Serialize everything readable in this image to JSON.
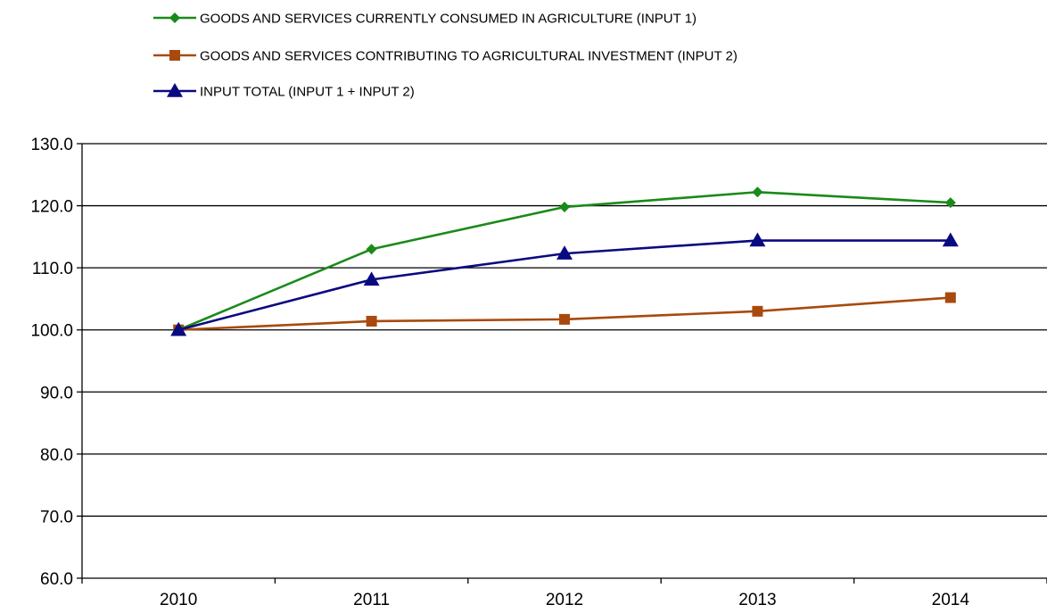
{
  "chart_data": {
    "type": "line",
    "title": "",
    "xlabel": "",
    "ylabel": "",
    "categories": [
      "2010",
      "2011",
      "2012",
      "2013",
      "2014"
    ],
    "ylim": [
      60,
      130
    ],
    "ytick_step": 10,
    "ytick_labels": [
      "60.0",
      "70.0",
      "80.0",
      "90.0",
      "100.0",
      "110.0",
      "120.0",
      "130.0"
    ],
    "grid": true,
    "legend_position": "top-left",
    "series": [
      {
        "name": "GOODS AND SERVICES CURRENTLY CONSUMED IN AGRICULTURE (INPUT 1)",
        "values": [
          100.0,
          113.0,
          119.8,
          122.2,
          120.5
        ],
        "color": "#1a8a1a",
        "marker": "diamond"
      },
      {
        "name": "GOODS AND SERVICES CONTRIBUTING TO AGRICULTURAL INVESTMENT (INPUT 2)",
        "values": [
          100.0,
          101.4,
          101.7,
          103.0,
          105.2
        ],
        "color": "#a84a0e",
        "marker": "square"
      },
      {
        "name": "INPUT TOTAL (INPUT 1 + INPUT 2)",
        "values": [
          100.0,
          108.1,
          112.3,
          114.4,
          114.4
        ],
        "color": "#0a0a80",
        "marker": "triangle"
      }
    ]
  }
}
